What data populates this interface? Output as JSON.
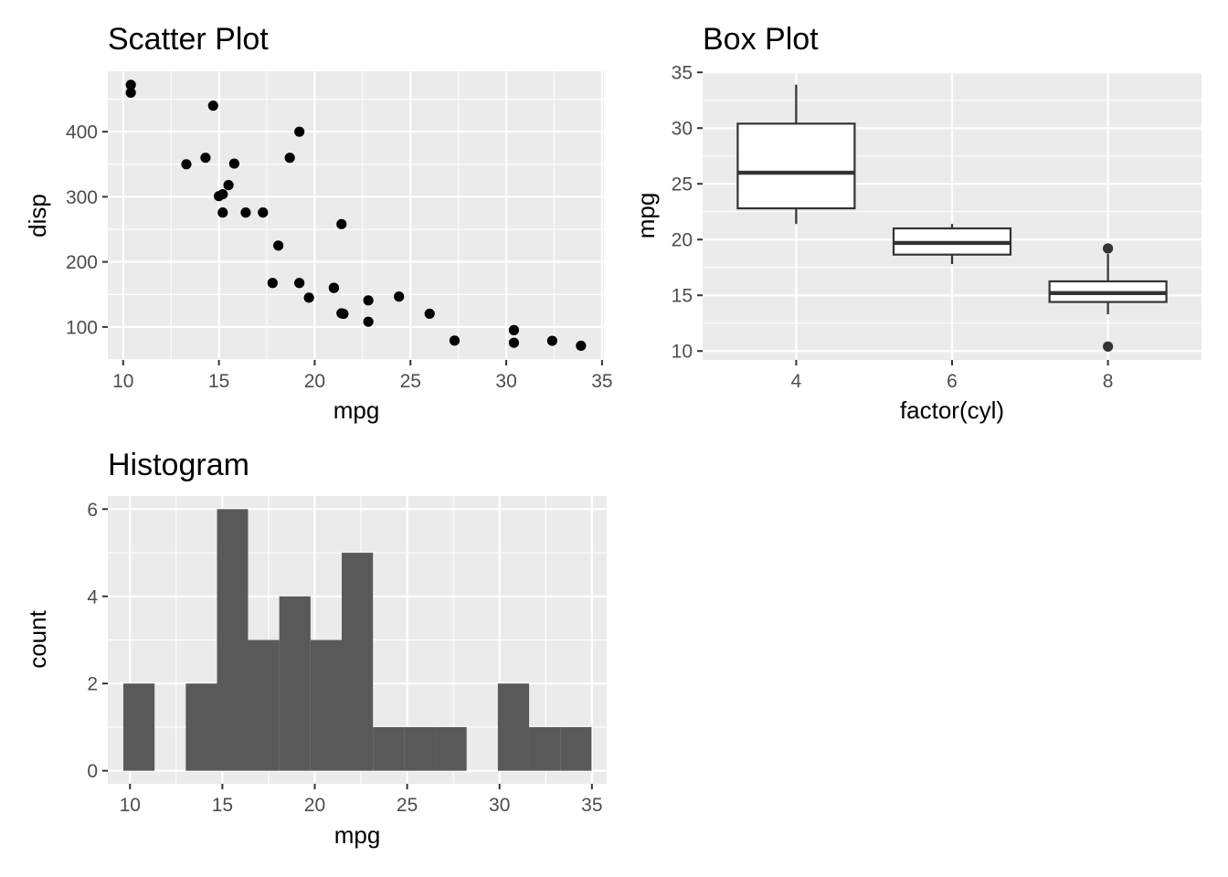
{
  "chart_data": [
    {
      "type": "scatter",
      "title": "Scatter Plot",
      "xlabel": "mpg",
      "ylabel": "disp",
      "xlim": [
        9.2,
        35.1
      ],
      "ylim": [
        49.3,
        492.9
      ],
      "xticks": [
        10,
        15,
        20,
        25,
        30,
        35
      ],
      "yticks": [
        100,
        200,
        300,
        400
      ],
      "grid": true,
      "points": [
        {
          "x": 21.0,
          "y": 160
        },
        {
          "x": 21.0,
          "y": 160
        },
        {
          "x": 22.8,
          "y": 108
        },
        {
          "x": 21.4,
          "y": 258
        },
        {
          "x": 18.7,
          "y": 360
        },
        {
          "x": 18.1,
          "y": 225
        },
        {
          "x": 14.3,
          "y": 360
        },
        {
          "x": 24.4,
          "y": 146.7
        },
        {
          "x": 22.8,
          "y": 140.8
        },
        {
          "x": 19.2,
          "y": 167.6
        },
        {
          "x": 17.8,
          "y": 167.6
        },
        {
          "x": 16.4,
          "y": 275.8
        },
        {
          "x": 17.3,
          "y": 275.8
        },
        {
          "x": 15.2,
          "y": 275.8
        },
        {
          "x": 10.4,
          "y": 472
        },
        {
          "x": 10.4,
          "y": 460
        },
        {
          "x": 14.7,
          "y": 440
        },
        {
          "x": 32.4,
          "y": 78.7
        },
        {
          "x": 30.4,
          "y": 75.7
        },
        {
          "x": 33.9,
          "y": 71.1
        },
        {
          "x": 21.5,
          "y": 120.1
        },
        {
          "x": 15.5,
          "y": 318
        },
        {
          "x": 15.2,
          "y": 304
        },
        {
          "x": 13.3,
          "y": 350
        },
        {
          "x": 19.2,
          "y": 400
        },
        {
          "x": 27.3,
          "y": 79
        },
        {
          "x": 26.0,
          "y": 120.3
        },
        {
          "x": 30.4,
          "y": 95.1
        },
        {
          "x": 15.8,
          "y": 351
        },
        {
          "x": 19.7,
          "y": 145
        },
        {
          "x": 15.0,
          "y": 301
        },
        {
          "x": 21.4,
          "y": 121
        }
      ]
    },
    {
      "type": "box",
      "title": "Box Plot",
      "xlabel": "factor(cyl)",
      "ylabel": "mpg",
      "ylim": [
        9.2,
        35.1
      ],
      "yticks": [
        10,
        15,
        20,
        25,
        30,
        35
      ],
      "grid": true,
      "categories": [
        "4",
        "6",
        "8"
      ],
      "boxes": [
        {
          "category": "4",
          "lower_whisker": 21.4,
          "q1": 22.8,
          "median": 26.0,
          "q3": 30.4,
          "upper_whisker": 33.9,
          "outliers": []
        },
        {
          "category": "6",
          "lower_whisker": 17.8,
          "q1": 18.65,
          "median": 19.7,
          "q3": 21.0,
          "upper_whisker": 21.4,
          "outliers": []
        },
        {
          "category": "8",
          "lower_whisker": 13.3,
          "q1": 14.4,
          "median": 15.2,
          "q3": 16.25,
          "upper_whisker": 18.7,
          "outliers": [
            19.2,
            10.4
          ]
        }
      ]
    },
    {
      "type": "histogram",
      "title": "Histogram",
      "xlabel": "mpg",
      "ylabel": "count",
      "xlim": [
        8.8,
        35.8
      ],
      "ylim": [
        -0.3,
        6.3
      ],
      "xticks": [
        10,
        15,
        20,
        25,
        30,
        35
      ],
      "yticks": [
        0,
        2,
        4,
        6
      ],
      "grid": true,
      "bins": [
        {
          "x0": 9.64,
          "x1": 11.33,
          "count": 2
        },
        {
          "x0": 11.33,
          "x1": 13.02,
          "count": 0
        },
        {
          "x0": 13.02,
          "x1": 14.71,
          "count": 2
        },
        {
          "x0": 14.71,
          "x1": 16.39,
          "count": 6
        },
        {
          "x0": 16.39,
          "x1": 18.08,
          "count": 3
        },
        {
          "x0": 18.08,
          "x1": 19.77,
          "count": 4
        },
        {
          "x0": 19.77,
          "x1": 21.46,
          "count": 3
        },
        {
          "x0": 21.46,
          "x1": 23.15,
          "count": 5
        },
        {
          "x0": 23.15,
          "x1": 24.84,
          "count": 1
        },
        {
          "x0": 24.84,
          "x1": 26.53,
          "count": 1
        },
        {
          "x0": 26.53,
          "x1": 28.22,
          "count": 1
        },
        {
          "x0": 28.22,
          "x1": 29.91,
          "count": 0
        },
        {
          "x0": 29.91,
          "x1": 31.6,
          "count": 2
        },
        {
          "x0": 31.6,
          "x1": 33.29,
          "count": 1
        },
        {
          "x0": 33.29,
          "x1": 34.98,
          "count": 1
        }
      ]
    }
  ]
}
